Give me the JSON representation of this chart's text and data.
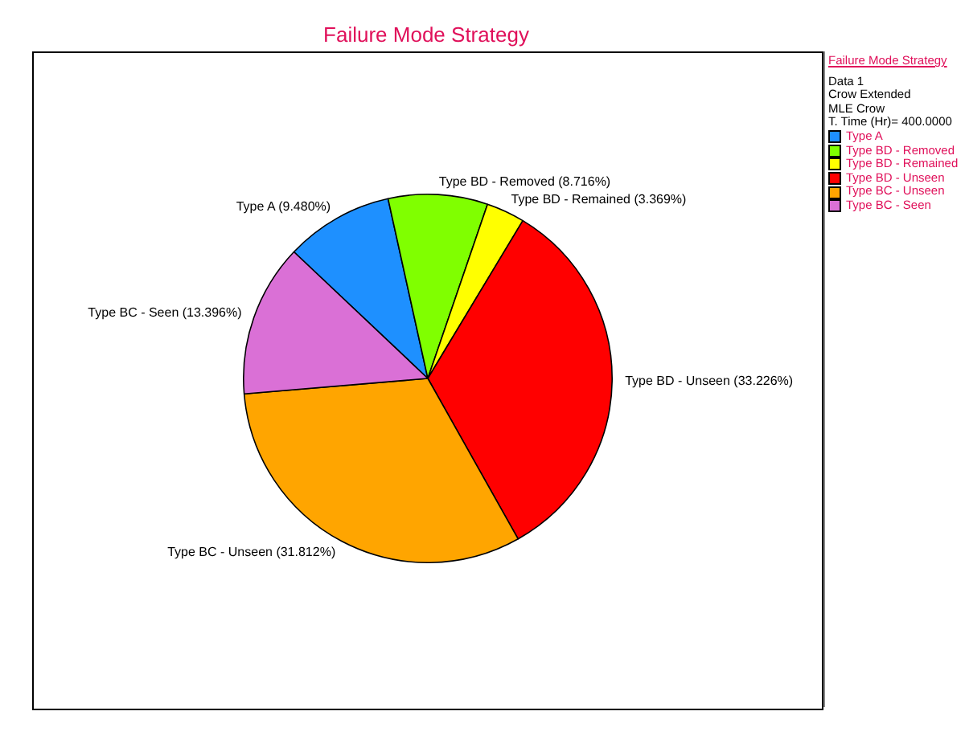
{
  "chart_data": {
    "type": "pie",
    "title": "Failure Mode Strategy",
    "legend_title": "Failure Mode Strategy",
    "annotations": [
      "Data 1",
      "Crow Extended",
      "MLE Crow",
      "T. Time (Hr)= 400.0000"
    ],
    "categories": [
      "Type A",
      "Type BD - Removed",
      "Type BD - Remained",
      "Type BD - Unseen",
      "Type BC - Unseen",
      "Type BC - Seen"
    ],
    "values": [
      9.48,
      8.716,
      3.369,
      33.226,
      31.812,
      13.396
    ],
    "colors": [
      "#1e90ff",
      "#80ff00",
      "#ffff00",
      "#ff0000",
      "#ffa500",
      "#da70d6"
    ],
    "value_labels": [
      "(9.480%)",
      "(8.716%)",
      "(3.369%)",
      "(33.226%)",
      "(31.812%)",
      "(13.396%)"
    ],
    "legend": "right"
  }
}
